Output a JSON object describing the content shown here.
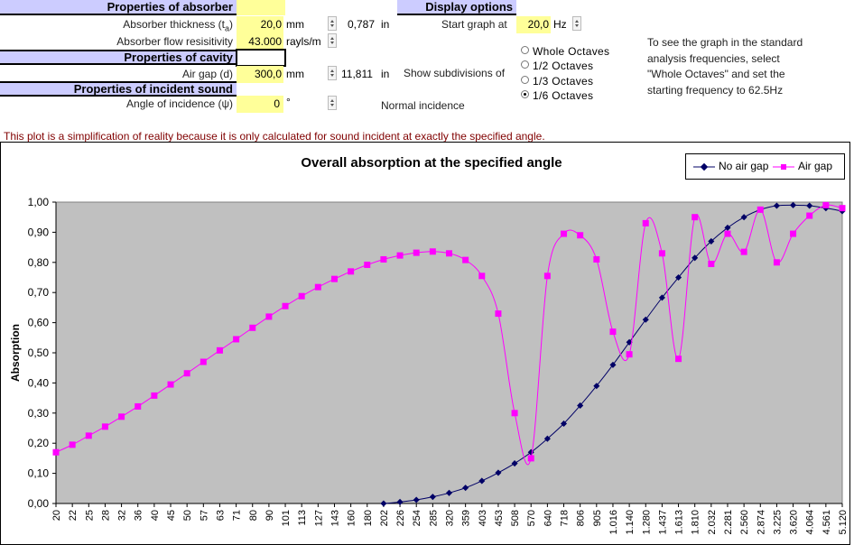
{
  "absorber": {
    "header": "Properties of absorber",
    "thickness_label": "Absorber thickness (t",
    "thickness_sub": "a",
    "thickness_close": ")",
    "thickness_value": "20,0",
    "thickness_unit": "mm",
    "thickness_inches": "0,787",
    "thickness_inches_unit": "in",
    "resistivity_label": "Absorber flow resisitivity",
    "resistivity_value": "43.000",
    "resistivity_unit": "rayls/m"
  },
  "cavity": {
    "header": "Properties of cavity",
    "gap_label": "Air gap (d)",
    "gap_value": "300,0",
    "gap_unit": "mm",
    "gap_inches": "11,811",
    "gap_inches_unit": "in"
  },
  "incident": {
    "header": "Properties of incident sound",
    "angle_label": "Angle of incidence (ψ)",
    "angle_value": "0",
    "angle_unit": "°",
    "incidence_note": "Normal incidence"
  },
  "display": {
    "header": "Display options",
    "start_label": "Start graph at",
    "start_value": "20,0",
    "start_unit": "Hz",
    "subdiv_label": "Show subdivisions of",
    "options": [
      "Whole Octaves",
      "1/2 Octaves",
      "1/3 Octaves",
      "1/6 Octaves"
    ],
    "selected_index": 3,
    "help_lines": [
      "To see the graph in the standard",
      "analysis frequencies, select",
      "\"Whole Octaves\" and set the",
      "starting frequency to 62.5Hz"
    ]
  },
  "disclaimer": "This plot is a simplification of reality because it is only calculated for sound incident at exactly the specified angle.",
  "colors": {
    "header_bg": "#ccccff",
    "input_bg": "#ffff99",
    "plot_bg": "#c0c0c0",
    "no_gap": "#000066",
    "air_gap": "#ff00ff",
    "note": "#800000"
  },
  "chart_data": {
    "type": "line",
    "title": "Overall absorption at the specified angle",
    "ylabel": "Absorption",
    "xlabel": "",
    "ylim": [
      0,
      1
    ],
    "yticks": [
      "0,00",
      "0,10",
      "0,20",
      "0,30",
      "0,40",
      "0,50",
      "0,60",
      "0,70",
      "0,80",
      "0,90",
      "1,00"
    ],
    "legend_position": "top-right",
    "categories": [
      "20",
      "22",
      "25",
      "28",
      "32",
      "36",
      "40",
      "45",
      "50",
      "57",
      "63",
      "71",
      "80",
      "90",
      "101",
      "113",
      "127",
      "143",
      "160",
      "180",
      "202",
      "226",
      "254",
      "285",
      "320",
      "359",
      "403",
      "453",
      "508",
      "570",
      "640",
      "718",
      "806",
      "905",
      "1.016",
      "1.140",
      "1.280",
      "1.437",
      "1.613",
      "1.810",
      "2.032",
      "2.281",
      "2.560",
      "2.874",
      "3.225",
      "3.620",
      "4.064",
      "4.561",
      "5.120"
    ],
    "series": [
      {
        "name": "No air gap",
        "color": "#000066",
        "marker": "diamond",
        "values": [
          null,
          null,
          null,
          null,
          null,
          null,
          null,
          null,
          null,
          null,
          null,
          null,
          null,
          null,
          null,
          null,
          null,
          null,
          null,
          null,
          0.0,
          0.005,
          0.012,
          0.022,
          0.035,
          0.052,
          0.075,
          0.102,
          0.133,
          0.17,
          0.215,
          0.265,
          0.325,
          0.39,
          0.46,
          0.535,
          0.61,
          0.683,
          0.75,
          0.815,
          0.87,
          0.915,
          0.95,
          0.975,
          0.988,
          0.99,
          0.988,
          0.98,
          0.97
        ]
      },
      {
        "name": "Air gap",
        "color": "#ff00ff",
        "marker": "square",
        "values": [
          0.17,
          0.195,
          0.225,
          0.255,
          0.288,
          0.322,
          0.358,
          0.395,
          0.432,
          0.47,
          0.508,
          0.545,
          0.583,
          0.62,
          0.655,
          0.688,
          0.718,
          0.745,
          0.77,
          0.792,
          0.81,
          0.823,
          0.832,
          0.836,
          0.83,
          0.808,
          0.755,
          0.63,
          0.3,
          0.15,
          0.755,
          0.895,
          0.89,
          0.81,
          0.57,
          0.495,
          0.93,
          0.83,
          0.48,
          0.95,
          0.795,
          0.895,
          0.835,
          0.975,
          0.8,
          0.895,
          0.955,
          0.99,
          0.98
        ]
      }
    ]
  }
}
